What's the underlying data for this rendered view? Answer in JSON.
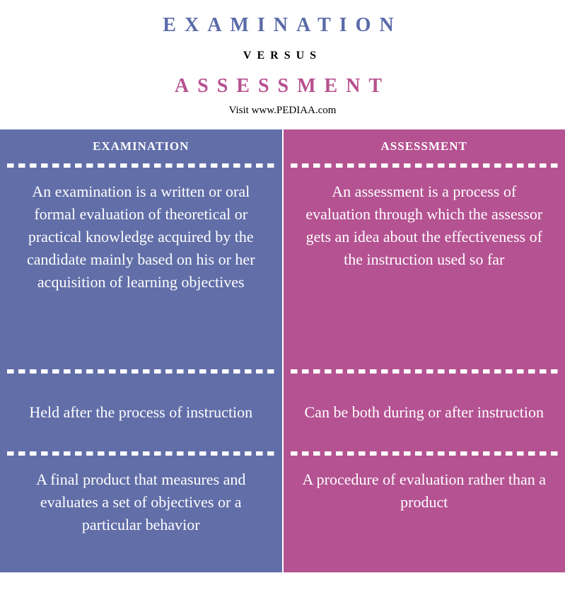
{
  "header": {
    "title1": "EXAMINATION",
    "title1_color": "#5a6aa8",
    "versus": "VERSUS",
    "title2": "ASSESSMENT",
    "title2_color": "#b85290",
    "visit": "Visit www.PEDIAA.com"
  },
  "columns": {
    "left": {
      "bg_color": "#616ea8",
      "header": "EXAMINATION",
      "rows": [
        "An examination is a written or oral formal evaluation of theoretical or practical knowledge acquired by the candidate mainly based on his or her acquisition of learning objectives",
        "Held after the process of instruction",
        "A final product that measures and evaluates a set of objectives or a particular behavior"
      ]
    },
    "right": {
      "bg_color": "#b55292",
      "header": "ASSESSMENT",
      "rows": [
        "An assessment is a process of evaluation through which the assessor gets an idea about the effectiveness of the instruction used so far",
        "Can be both during or after instruction",
        "A procedure of evaluation rather than a product"
      ]
    }
  }
}
